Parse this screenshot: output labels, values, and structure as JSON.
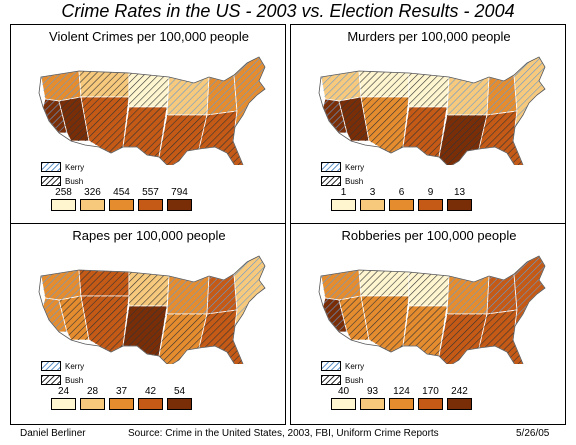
{
  "title": "Crime Rates in the US - 2003 vs. Election Results - 2004",
  "legend_vote": [
    {
      "label": "Kerry",
      "pattern": "hatch-kerry",
      "color": "#6699cc"
    },
    {
      "label": "Bush",
      "pattern": "hatch-bush",
      "color": "#333333"
    }
  ],
  "scale_colors": [
    "#fff6d0",
    "#f7c97d",
    "#e58c2f",
    "#c45a16",
    "#7a2e08"
  ],
  "panels": [
    {
      "title": "Violent Crimes per 100,000 people",
      "scale": [
        "258",
        "326",
        "454",
        "557",
        "794"
      ]
    },
    {
      "title": "Murders per 100,000 people",
      "scale": [
        "1",
        "3",
        "6",
        "9",
        "13"
      ]
    },
    {
      "title": "Rapes per 100,000 people",
      "scale": [
        "24",
        "28",
        "37",
        "42",
        "54"
      ]
    },
    {
      "title": "Robberies per 100,000 people",
      "scale": [
        "40",
        "93",
        "124",
        "170",
        "242"
      ]
    }
  ],
  "footer": {
    "author": "Daniel Berliner",
    "source": "Source: Crime in the United States, 2003, FBI, Uniform Crime Reports",
    "date": "5/26/05"
  }
}
